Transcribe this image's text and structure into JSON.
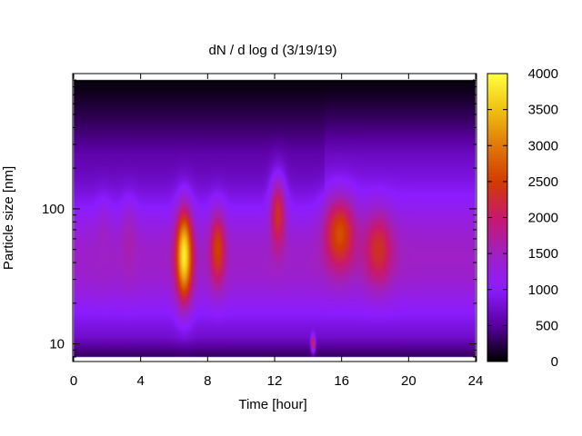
{
  "chart_data": {
    "type": "heatmap",
    "title": "dN / d log d (3/19/19)",
    "xlabel": "Time [hour]",
    "ylabel": "Particle size [nm]",
    "xlim": [
      0,
      24
    ],
    "xticks": [
      0,
      4,
      8,
      12,
      16,
      20,
      24
    ],
    "ylim": [
      8,
      900
    ],
    "yscale": "log",
    "yticks": [
      10,
      100
    ],
    "colorbar": {
      "range": [
        0,
        4000
      ],
      "ticks": [
        0,
        500,
        1000,
        1500,
        2000,
        2500,
        3000,
        3500,
        4000
      ],
      "colormap": [
        "#000000",
        "#5a00a0",
        "#8c1cff",
        "#a020c0",
        "#c8186e",
        "#d23c00",
        "#e0780a",
        "#f0c010",
        "#ffff40"
      ]
    },
    "features": [
      {
        "time_hour": 1.8,
        "diameter_nm": 55,
        "peak": 1450
      },
      {
        "time_hour": 3.3,
        "diameter_nm": 55,
        "peak": 1600
      },
      {
        "time_hour": 6.6,
        "diameter_nm": 45,
        "peak": 3850
      },
      {
        "time_hour": 8.6,
        "diameter_nm": 50,
        "peak": 2550
      },
      {
        "time_hour": 12.2,
        "diameter_nm": 90,
        "peak": 2350
      },
      {
        "time_hour": 14.3,
        "diameter_nm": 10,
        "peak": 2300
      },
      {
        "time_hour": 15.9,
        "diameter_nm": 65,
        "peak": 2650
      },
      {
        "time_hour": 18.2,
        "diameter_nm": 50,
        "peak": 2350
      }
    ]
  }
}
